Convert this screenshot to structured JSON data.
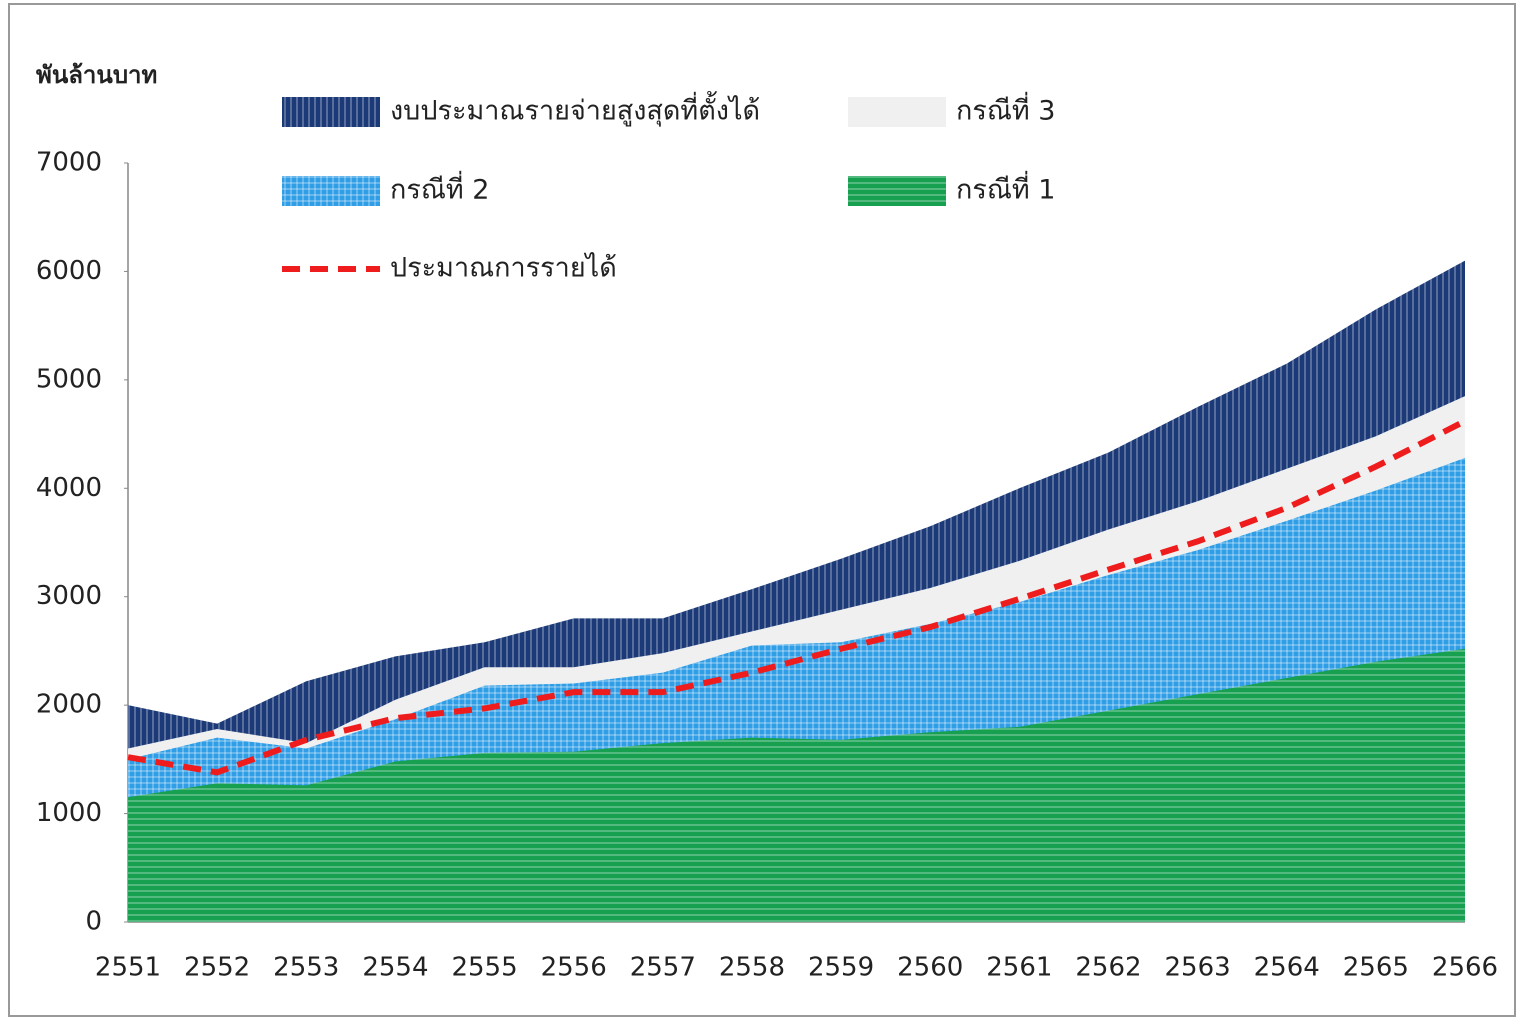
{
  "chart_data": {
    "type": "area",
    "y_label": "พันล้านบาท",
    "categories": [
      "2551",
      "2552",
      "2553",
      "2554",
      "2555",
      "2556",
      "2557",
      "2558",
      "2559",
      "2560",
      "2561",
      "2562",
      "2563",
      "2564",
      "2565",
      "2566"
    ],
    "ylim": [
      0,
      7000
    ],
    "yticks": [
      0,
      1000,
      2000,
      3000,
      4000,
      5000,
      6000,
      7000
    ],
    "series": [
      {
        "name": "งบประมาณรายจ่ายสูงสุดที่ตั้งได้",
        "color": "#1c3a78",
        "pattern": "vertical",
        "values": [
          2000,
          1830,
          2220,
          2450,
          2580,
          2800,
          2800,
          3070,
          3350,
          3650,
          4000,
          4330,
          4750,
          5150,
          5650,
          6100
        ]
      },
      {
        "name": "กรณีที่ 3",
        "color": "#f0f0f0",
        "values": [
          1600,
          1780,
          1650,
          2050,
          2350,
          2350,
          2480,
          2680,
          2880,
          3080,
          3330,
          3620,
          3880,
          4180,
          4480,
          4850
        ]
      },
      {
        "name": "กรณีที่ 2",
        "color": "#2f9ee6",
        "pattern": "grid",
        "values": [
          1500,
          1700,
          1600,
          1870,
          2180,
          2200,
          2300,
          2550,
          2580,
          2750,
          2950,
          3200,
          3430,
          3700,
          3980,
          4280
        ]
      },
      {
        "name": "กรณีที่ 1",
        "color": "#16a050",
        "pattern": "horizontal",
        "values": [
          1150,
          1280,
          1260,
          1480,
          1560,
          1570,
          1650,
          1700,
          1680,
          1750,
          1800,
          1950,
          2100,
          2250,
          2400,
          2520
        ]
      },
      {
        "name": "ประมาณการรายได้",
        "color": "#ee1c1c",
        "type": "line",
        "dashed": true,
        "values": [
          1520,
          1380,
          1680,
          1880,
          1970,
          2120,
          2120,
          2300,
          2520,
          2720,
          2980,
          3250,
          3510,
          3820,
          4200,
          4620
        ]
      }
    ]
  }
}
